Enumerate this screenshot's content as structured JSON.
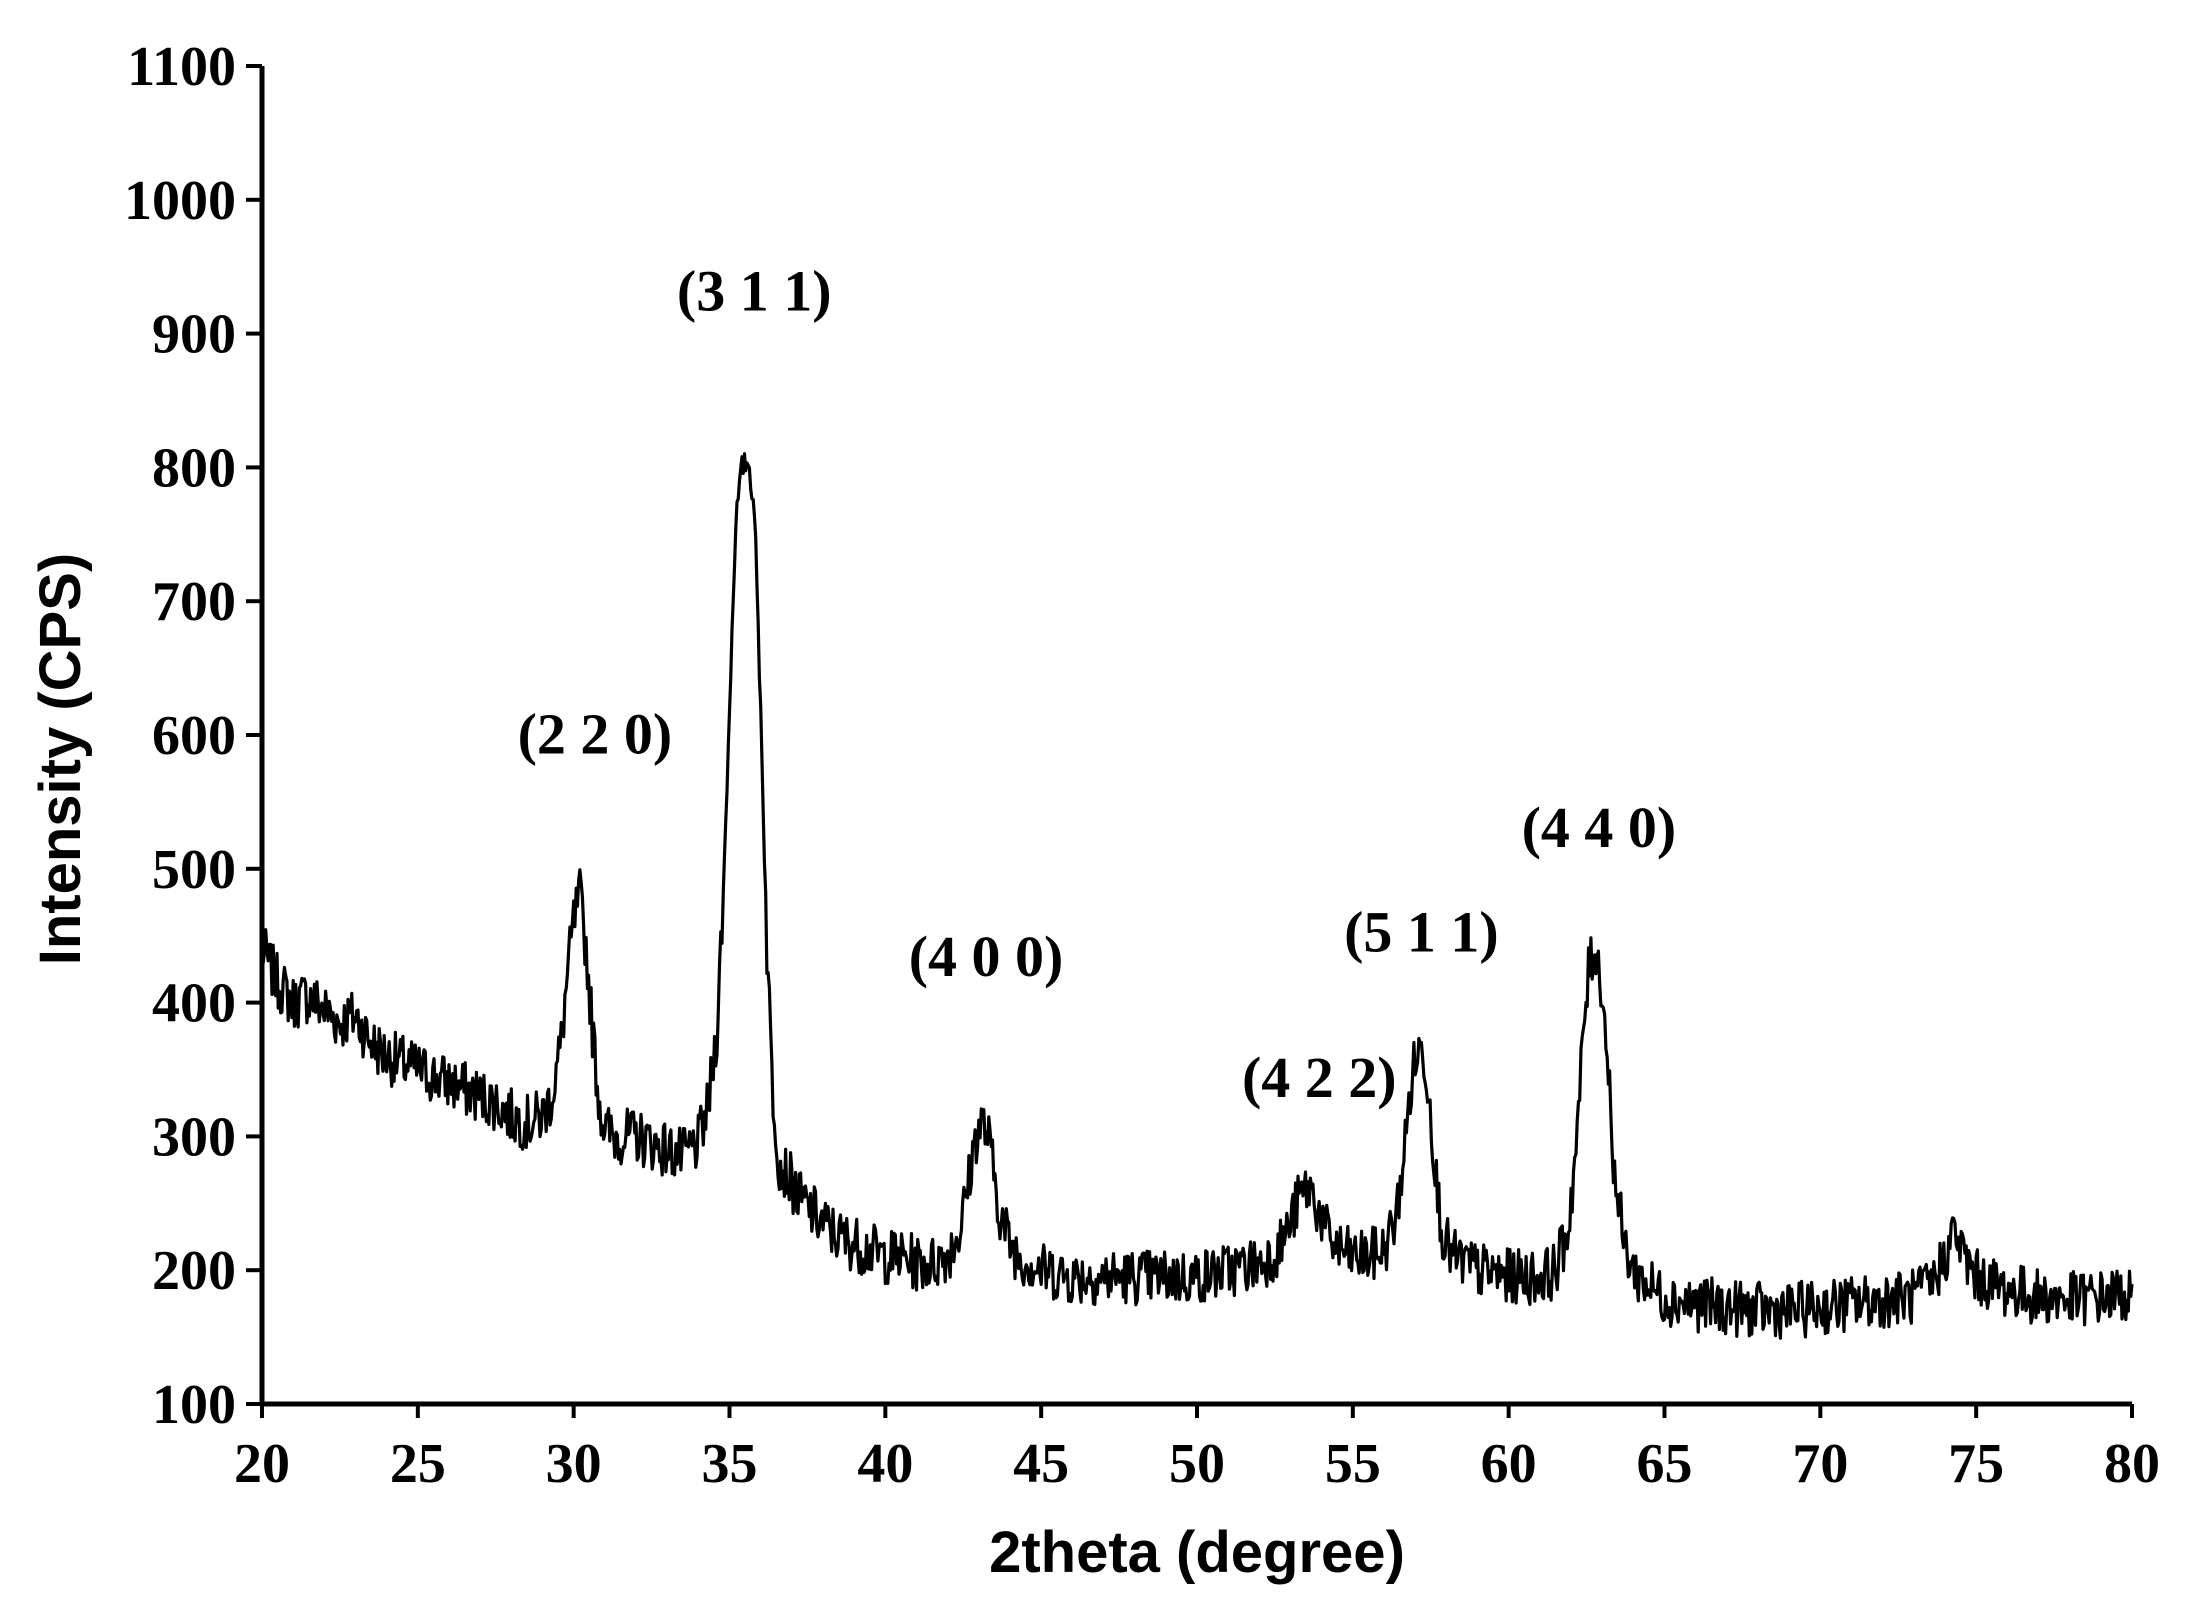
{
  "chart_data": {
    "type": "line",
    "title": "",
    "xlabel": "2theta (degree)",
    "ylabel": "Intensity (CPS)",
    "xlim": [
      20,
      80
    ],
    "ylim": [
      100,
      1100
    ],
    "x_ticks": [
      20,
      25,
      30,
      35,
      40,
      45,
      50,
      55,
      60,
      65,
      70,
      75,
      80
    ],
    "y_ticks": [
      100,
      200,
      300,
      400,
      500,
      600,
      700,
      800,
      900,
      1000,
      1100
    ],
    "grid": false,
    "legend": "none",
    "line_color": "#000000",
    "peaks": [
      {
        "label": "(2 2 0)",
        "x": 30.2,
        "y": 480
      },
      {
        "label": "(3 1 1)",
        "x": 35.6,
        "y": 805
      },
      {
        "label": "(4 0 0)",
        "x": 43.2,
        "y": 310
      },
      {
        "label": "(4 2 2)",
        "x": 53.7,
        "y": 262
      },
      {
        "label": "(5 1 1)",
        "x": 57.2,
        "y": 365
      },
      {
        "label": "(4 4 0)",
        "x": 62.8,
        "y": 440
      }
    ],
    "series": [
      {
        "x": [
          20,
          20.5,
          21,
          21.5,
          22,
          22.5,
          23,
          23.5,
          24,
          24.5,
          25,
          25.5,
          26,
          26.5,
          27,
          27.5,
          28,
          28.5,
          29,
          29.3,
          29.6,
          29.8,
          30.0,
          30.2,
          30.4,
          30.6,
          30.8,
          31.0,
          31.3,
          31.6,
          32,
          32.5,
          33,
          33.5,
          34,
          34.3,
          34.6,
          34.8,
          35.0,
          35.2,
          35.4,
          35.6,
          35.8,
          36.0,
          36.2,
          36.4,
          36.6,
          36.9,
          37.2,
          37.6,
          38,
          38.5,
          39,
          39.5,
          40,
          40.5,
          41,
          41.5,
          42,
          42.4,
          42.7,
          42.9,
          43.1,
          43.3,
          43.5,
          43.7,
          44.0,
          44.3,
          44.7,
          45,
          46,
          47,
          48,
          49,
          50,
          51,
          52,
          52.6,
          53.0,
          53.3,
          53.6,
          53.9,
          54.2,
          54.6,
          55,
          55.5,
          56,
          56.4,
          56.7,
          56.9,
          57.1,
          57.3,
          57.5,
          57.7,
          57.9,
          58.2,
          58.6,
          59,
          59.5,
          60,
          60.5,
          61,
          61.5,
          61.9,
          62.2,
          62.4,
          62.6,
          62.8,
          63.0,
          63.2,
          63.4,
          63.7,
          64.0,
          64.4,
          65,
          66,
          67,
          68,
          69,
          70,
          71,
          72,
          73,
          73.6,
          74.0,
          74.3,
          74.6,
          75,
          76,
          77,
          78,
          79,
          80
        ],
        "y": [
          440,
          415,
          400,
          405,
          395,
          385,
          390,
          370,
          360,
          355,
          350,
          345,
          340,
          335,
          330,
          325,
          315,
          310,
          315,
          330,
          370,
          420,
          460,
          480,
          440,
          380,
          330,
          305,
          300,
          300,
          300,
          295,
          290,
          285,
          295,
          320,
          380,
          480,
          620,
          760,
          800,
          805,
          770,
          620,
          440,
          330,
          280,
          270,
          255,
          245,
          235,
          225,
          220,
          215,
          210,
          210,
          205,
          205,
          212,
          230,
          270,
          300,
          310,
          300,
          270,
          240,
          220,
          210,
          205,
          200,
          195,
          195,
          195,
          195,
          195,
          200,
          205,
          215,
          235,
          255,
          262,
          245,
          225,
          215,
          210,
          210,
          215,
          240,
          300,
          345,
          365,
          360,
          320,
          260,
          225,
          210,
          205,
          200,
          198,
          195,
          195,
          195,
          200,
          230,
          300,
          380,
          430,
          440,
          410,
          350,
          270,
          220,
          200,
          190,
          180,
          175,
          172,
          170,
          170,
          172,
          175,
          178,
          180,
          190,
          210,
          230,
          210,
          195,
          185,
          180,
          178,
          180,
          182
        ]
      }
    ]
  }
}
